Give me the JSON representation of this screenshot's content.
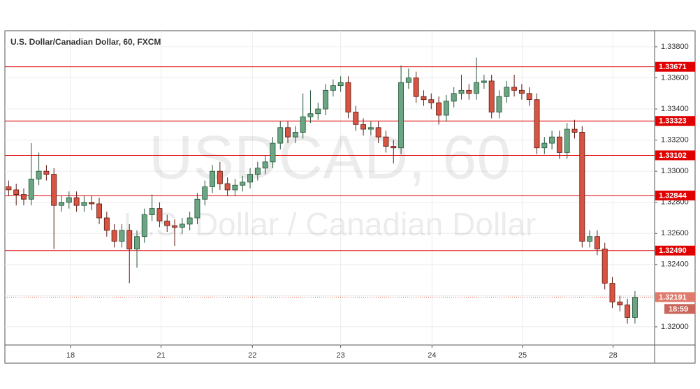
{
  "chart_data": {
    "type": "candlestick",
    "title": "U.S. Dollar/Canadian Dollar, 60, FXCM",
    "watermark": "USDCAD, 60",
    "watermark_subtitle": "U.S. Dollar / Canadian Dollar",
    "open": [
      1.329,
      1.3288,
      1.3285,
      1.3282,
      1.3295,
      1.33,
      1.3298,
      1.3278,
      1.328,
      1.3283,
      1.3278,
      1.328,
      1.3279,
      1.327,
      1.3262,
      1.3255,
      1.3262,
      1.325,
      1.3258,
      1.3272,
      1.3276,
      1.3268,
      1.3265,
      1.3264,
      1.3266,
      1.327,
      1.3282,
      1.329,
      1.33,
      1.3292,
      1.3288,
      1.3291,
      1.3293,
      1.3298,
      1.3302,
      1.3306,
      1.3318,
      1.3328,
      1.3322,
      1.3325,
      1.3335,
      1.3337,
      1.334,
      1.3352,
      1.3355,
      1.3357,
      1.3338,
      1.333,
      1.3327,
      1.3328,
      1.3322,
      1.3316,
      1.3315,
      1.3357,
      1.336,
      1.3348,
      1.3346,
      1.3344,
      1.3336,
      1.3345,
      1.335,
      1.3352,
      1.335,
      1.3357,
      1.3358,
      1.3338,
      1.3348,
      1.3354,
      1.3352,
      1.335,
      1.3346,
      1.3315,
      1.3318,
      1.3322,
      1.3312,
      1.3327,
      1.3325,
      1.3255,
      1.3258,
      1.325,
      1.3228,
      1.3216,
      1.3214,
      1.3206
    ],
    "high": [
      1.3294,
      1.3292,
      1.3289,
      1.3318,
      1.3312,
      1.3304,
      1.3302,
      1.3284,
      1.3287,
      1.3287,
      1.3284,
      1.3284,
      1.3283,
      1.3274,
      1.3266,
      1.3266,
      1.3266,
      1.3262,
      1.3276,
      1.3285,
      1.328,
      1.3272,
      1.3269,
      1.327,
      1.3274,
      1.3286,
      1.3294,
      1.3304,
      1.3306,
      1.3296,
      1.3295,
      1.3297,
      1.3302,
      1.3306,
      1.331,
      1.3322,
      1.3332,
      1.3332,
      1.3329,
      1.335,
      1.3352,
      1.3344,
      1.3356,
      1.3359,
      1.3361,
      1.3361,
      1.3342,
      1.3334,
      1.3332,
      1.3332,
      1.3326,
      1.332,
      1.3368,
      1.3366,
      1.3364,
      1.3352,
      1.335,
      1.3348,
      1.3349,
      1.3354,
      1.3362,
      1.3356,
      1.3373,
      1.3362,
      1.3362,
      1.3352,
      1.3358,
      1.3362,
      1.3356,
      1.3354,
      1.335,
      1.3322,
      1.3326,
      1.3326,
      1.3331,
      1.3333,
      1.3329,
      1.3262,
      1.3262,
      1.3254,
      1.3232,
      1.322,
      1.3218,
      1.3223
    ],
    "low": [
      1.3284,
      1.3278,
      1.3278,
      1.3278,
      1.3291,
      1.3294,
      1.325,
      1.3274,
      1.3276,
      1.3274,
      1.3274,
      1.3275,
      1.3266,
      1.3258,
      1.3251,
      1.3251,
      1.3228,
      1.3238,
      1.3254,
      1.3268,
      1.3264,
      1.3261,
      1.3252,
      1.326,
      1.3262,
      1.3266,
      1.3278,
      1.3286,
      1.3288,
      1.3284,
      1.3284,
      1.3287,
      1.3289,
      1.3294,
      1.3298,
      1.3302,
      1.3314,
      1.3318,
      1.3318,
      1.3321,
      1.3331,
      1.3333,
      1.3336,
      1.3348,
      1.3351,
      1.3334,
      1.3326,
      1.3323,
      1.3323,
      1.3318,
      1.3312,
      1.3305,
      1.3311,
      1.3353,
      1.3344,
      1.3342,
      1.334,
      1.333,
      1.3332,
      1.3341,
      1.3346,
      1.3346,
      1.3346,
      1.3353,
      1.3334,
      1.3334,
      1.3344,
      1.3348,
      1.3346,
      1.3342,
      1.3311,
      1.3311,
      1.3314,
      1.3308,
      1.3308,
      1.3321,
      1.3251,
      1.3251,
      1.3246,
      1.3224,
      1.3212,
      1.321,
      1.3202,
      1.3202
    ],
    "close": [
      1.3288,
      1.3285,
      1.3282,
      1.3295,
      1.33,
      1.3298,
      1.3278,
      1.328,
      1.3283,
      1.3278,
      1.328,
      1.3279,
      1.327,
      1.3262,
      1.3255,
      1.3262,
      1.325,
      1.3258,
      1.3272,
      1.3276,
      1.3268,
      1.3265,
      1.3264,
      1.3266,
      1.327,
      1.3282,
      1.329,
      1.33,
      1.3292,
      1.3288,
      1.3291,
      1.3293,
      1.3298,
      1.3302,
      1.3306,
      1.3318,
      1.3328,
      1.3322,
      1.3325,
      1.3335,
      1.3337,
      1.334,
      1.3352,
      1.3355,
      1.3357,
      1.3338,
      1.333,
      1.3327,
      1.3328,
      1.3322,
      1.3316,
      1.3315,
      1.3357,
      1.336,
      1.3348,
      1.3346,
      1.3344,
      1.3336,
      1.3345,
      1.335,
      1.3352,
      1.335,
      1.3357,
      1.3358,
      1.3338,
      1.3348,
      1.3354,
      1.3352,
      1.335,
      1.3346,
      1.3315,
      1.3318,
      1.3322,
      1.3312,
      1.3327,
      1.3325,
      1.3255,
      1.3258,
      1.325,
      1.3228,
      1.3216,
      1.3214,
      1.3206,
      1.3219
    ],
    "up_color": "#6ba583",
    "down_color": "#d75442",
    "xlim": [
      -0.5,
      85.6
    ],
    "xticks": [
      {
        "value": 8.2,
        "label": "18"
      },
      {
        "value": 20.2,
        "label": "21"
      },
      {
        "value": 32.3,
        "label": "22"
      },
      {
        "value": 44.0,
        "label": "23"
      },
      {
        "value": 56.1,
        "label": "24"
      },
      {
        "value": 68.1,
        "label": "25"
      },
      {
        "value": 80.1,
        "label": "28"
      }
    ],
    "ylim": [
      1.31883,
      1.33903
    ],
    "yticks": [
      {
        "value": 1.32,
        "label": "1.32000"
      },
      {
        "value": 1.322,
        "label": "1.32200"
      },
      {
        "value": 1.324,
        "label": "1.32400"
      },
      {
        "value": 1.326,
        "label": "1.32600"
      },
      {
        "value": 1.328,
        "label": "1.32800"
      },
      {
        "value": 1.33,
        "label": "1.33000"
      },
      {
        "value": 1.332,
        "label": "1.33200"
      },
      {
        "value": 1.334,
        "label": "1.33400"
      },
      {
        "value": 1.336,
        "label": "1.33600"
      },
      {
        "value": 1.338,
        "label": "1.33800"
      }
    ],
    "grid": true,
    "levels": [
      {
        "value": 1.33671,
        "label": "1.33671"
      },
      {
        "value": 1.33323,
        "label": "1.33323"
      },
      {
        "value": 1.33102,
        "label": "1.33102"
      },
      {
        "value": 1.32844,
        "label": "1.32844"
      },
      {
        "value": 1.3249,
        "label": "1.32490"
      }
    ],
    "level_color": "#e00000",
    "last_price": {
      "value": 1.32191,
      "label": "1.32191"
    },
    "countdown": "18:59"
  }
}
